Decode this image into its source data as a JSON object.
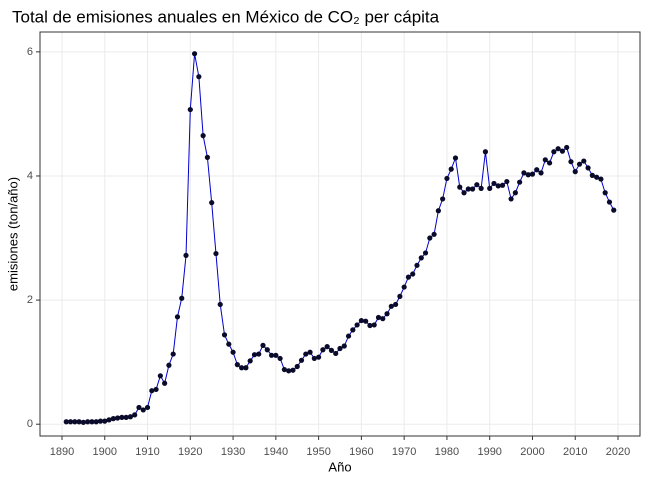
{
  "chart_data": {
    "type": "line",
    "title": "Total de emisiones anuales en México de CO₂ per cápita",
    "x_label": "Año",
    "y_label": "emisiones (ton/año)",
    "x": [
      1891,
      1892,
      1893,
      1894,
      1895,
      1896,
      1897,
      1898,
      1899,
      1900,
      1901,
      1902,
      1903,
      1904,
      1905,
      1906,
      1907,
      1908,
      1909,
      1910,
      1911,
      1912,
      1913,
      1914,
      1915,
      1916,
      1917,
      1918,
      1919,
      1920,
      1921,
      1922,
      1923,
      1924,
      1925,
      1926,
      1927,
      1928,
      1929,
      1930,
      1931,
      1932,
      1933,
      1934,
      1935,
      1936,
      1937,
      1938,
      1939,
      1940,
      1941,
      1942,
      1943,
      1944,
      1945,
      1946,
      1947,
      1948,
      1949,
      1950,
      1951,
      1952,
      1953,
      1954,
      1955,
      1956,
      1957,
      1958,
      1959,
      1960,
      1961,
      1962,
      1963,
      1964,
      1965,
      1966,
      1967,
      1968,
      1969,
      1970,
      1971,
      1972,
      1973,
      1974,
      1975,
      1976,
      1977,
      1978,
      1979,
      1980,
      1981,
      1982,
      1983,
      1984,
      1985,
      1986,
      1987,
      1988,
      1989,
      1990,
      1991,
      1992,
      1993,
      1994,
      1995,
      1996,
      1997,
      1998,
      1999,
      2000,
      2001,
      2002,
      2003,
      2004,
      2005,
      2006,
      2007,
      2008,
      2009,
      2010,
      2011,
      2012,
      2013,
      2014,
      2015,
      2016,
      2017,
      2018,
      2019
    ],
    "series": [
      {
        "line_color": "#0000cc",
        "color": "#0a0a2a",
        "values": [
          0.04,
          0.04,
          0.04,
          0.04,
          0.03,
          0.04,
          0.04,
          0.04,
          0.05,
          0.05,
          0.07,
          0.09,
          0.1,
          0.11,
          0.11,
          0.12,
          0.15,
          0.27,
          0.23,
          0.27,
          0.54,
          0.56,
          0.78,
          0.66,
          0.95,
          1.13,
          1.73,
          2.03,
          2.72,
          5.07,
          5.97,
          5.6,
          4.65,
          4.3,
          3.57,
          2.75,
          1.93,
          1.44,
          1.29,
          1.16,
          0.96,
          0.91,
          0.91,
          1.02,
          1.12,
          1.13,
          1.27,
          1.2,
          1.11,
          1.11,
          1.06,
          0.88,
          0.86,
          0.87,
          0.93,
          1.03,
          1.13,
          1.16,
          1.06,
          1.08,
          1.2,
          1.25,
          1.19,
          1.14,
          1.22,
          1.26,
          1.42,
          1.52,
          1.6,
          1.67,
          1.66,
          1.59,
          1.6,
          1.72,
          1.7,
          1.78,
          1.9,
          1.93,
          2.06,
          2.21,
          2.37,
          2.42,
          2.56,
          2.68,
          2.76,
          3.0,
          3.06,
          3.44,
          3.63,
          3.96,
          4.11,
          4.29,
          3.82,
          3.73,
          3.79,
          3.79,
          3.86,
          3.8,
          4.39,
          3.8,
          3.88,
          3.84,
          3.85,
          3.91,
          3.63,
          3.73,
          3.9,
          4.05,
          4.02,
          4.03,
          4.1,
          4.05,
          4.26,
          4.21,
          4.39,
          4.44,
          4.4,
          4.46,
          4.23,
          4.07,
          4.19,
          4.24,
          4.13,
          4.01,
          3.98,
          3.95,
          3.73,
          3.58,
          3.45
        ]
      }
    ],
    "xlim": [
      1884.86,
      2025.14
    ],
    "ylim": [
      -0.19,
      6.32
    ],
    "xticks": [
      1890,
      1900,
      1910,
      1920,
      1930,
      1940,
      1950,
      1960,
      1970,
      1980,
      1990,
      2000,
      2010,
      2020
    ],
    "yticks": [
      0,
      2,
      4,
      6
    ],
    "grid": true
  }
}
